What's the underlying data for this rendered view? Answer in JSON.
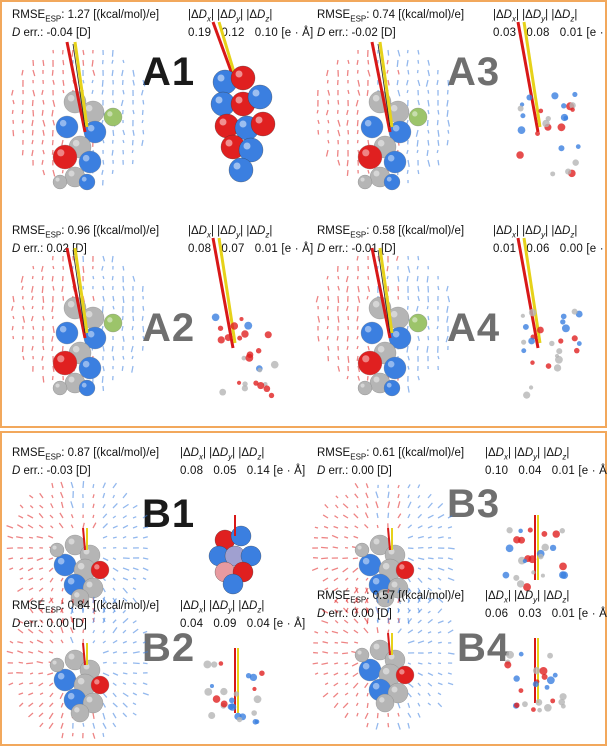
{
  "panels": {
    "A1": {
      "label": "A1",
      "rmse": "1.27",
      "unit": "[(kcal/mol)/e]",
      "derr": "-0.04",
      "dunit": "[D]",
      "dx": "0.19",
      "dy": "0.12",
      "dz": "0.10",
      "dxyz_unit": "[e · Å]"
    },
    "A2": {
      "label": "A2",
      "rmse": "0.96",
      "unit": "[(kcal/mol)/e]",
      "derr": "0.02",
      "dunit": "[D]",
      "dx": "0.08",
      "dy": "0.07",
      "dz": "0.01",
      "dxyz_unit": "[e · Å]"
    },
    "A3": {
      "label": "A3",
      "rmse": "0.74",
      "unit": "[(kcal/mol)/e]",
      "derr": "-0.02",
      "dunit": "[D]",
      "dx": "0.03",
      "dy": "0.08",
      "dz": "0.01",
      "dxyz_unit": "[e · Å]"
    },
    "A4": {
      "label": "A4",
      "rmse": "0.58",
      "unit": "[(kcal/mol)/e]",
      "derr": "-0.01",
      "dunit": "[D]",
      "dx": "0.01",
      "dy": "0.06",
      "dz": "0.00",
      "dxyz_unit": "[e · Å]"
    },
    "B1": {
      "label": "B1",
      "rmse": "0.87",
      "unit": "[(kcal/mol)/e]",
      "derr": "-0.03",
      "dunit": "[D]",
      "dx": "0.08",
      "dy": "0.05",
      "dz": "0.14",
      "dxyz_unit": "[e · Å]"
    },
    "B2": {
      "label": "B2",
      "rmse": "0.84",
      "unit": "[(kcal/mol)/e]",
      "derr": "0.00",
      "dunit": "[D]",
      "dx": "0.04",
      "dy": "0.09",
      "dz": "0.04",
      "dxyz_unit": "[e · Å]"
    },
    "B3": {
      "label": "B3",
      "rmse": "0.61",
      "unit": "[(kcal/mol)/e]",
      "derr": "0.00",
      "dunit": "[D]",
      "dx": "0.10",
      "dy": "0.04",
      "dz": "0.01",
      "dxyz_unit": "[e · Å]"
    },
    "B4": {
      "label": "B4",
      "rmse": "0.57",
      "unit": "[(kcal/mol)/e]",
      "derr": "0.00",
      "dunit": "[D]",
      "dx": "0.06",
      "dy": "0.03",
      "dz": "0.01",
      "dxyz_unit": "[e · Å]"
    }
  },
  "colors": {
    "frame": "#f2a85c",
    "blue": "#3b7fe0",
    "red": "#e02020",
    "gray": "#b5b5b5",
    "green": "#9cc46a",
    "yellow": "#e6d21a",
    "arrow_red": "#d81818"
  }
}
